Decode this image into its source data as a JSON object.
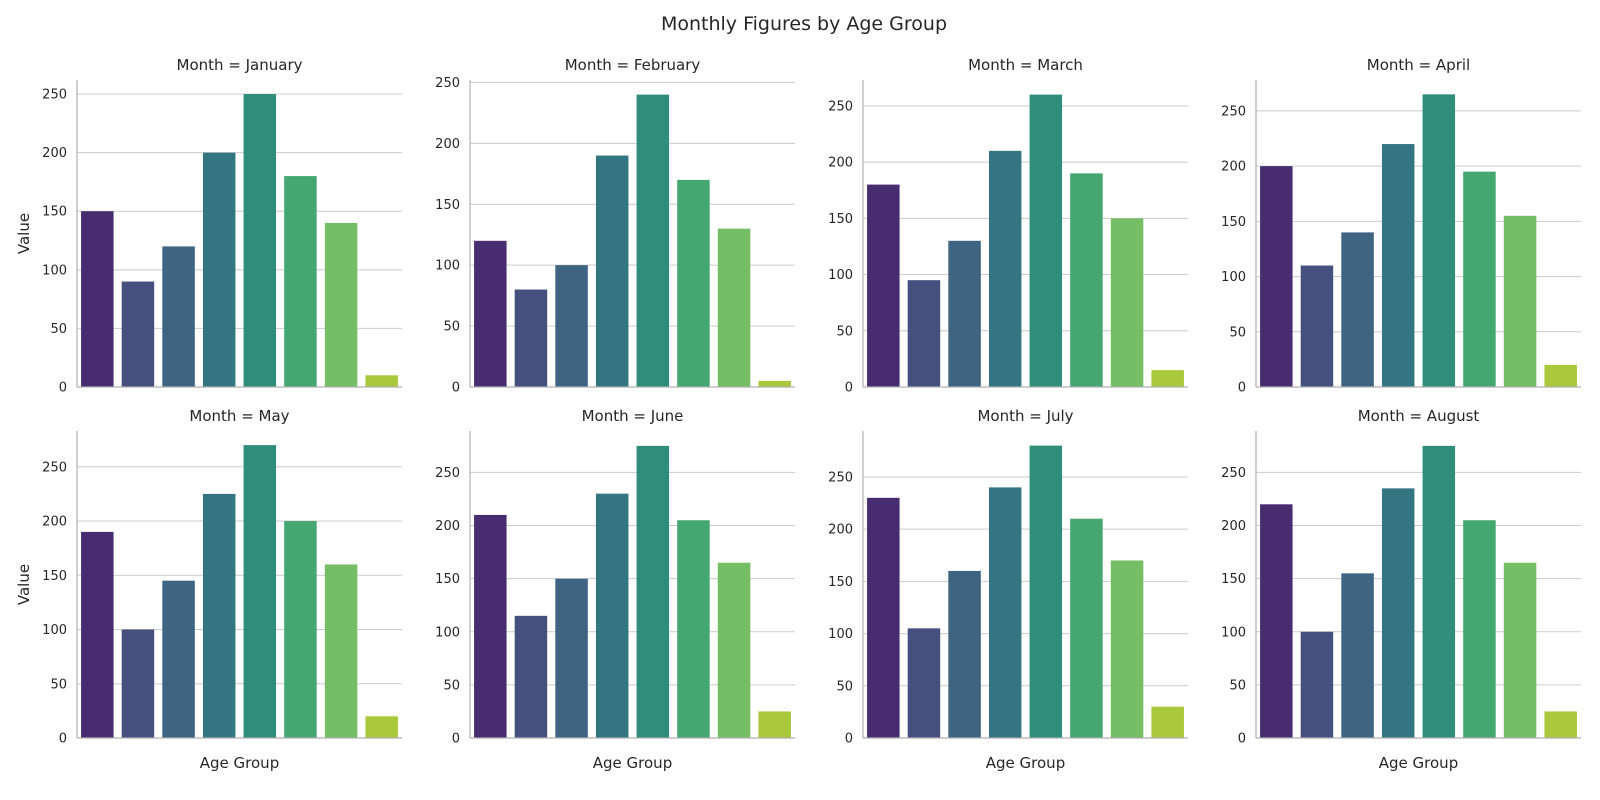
{
  "chart_data": {
    "type": "bar",
    "title": "Monthly Figures by Age Group",
    "xlabel": "Age Group",
    "ylabel": "Value",
    "grid": true,
    "legend": "none",
    "palette": [
      "#472d6f",
      "#46507e",
      "#3e6482",
      "#337682",
      "#2e8e7b",
      "#44a772",
      "#76be66",
      "#aac83c"
    ],
    "panels": [
      {
        "title": "Month = January",
        "ylim": [
          0,
          262
        ],
        "yticks": [
          0,
          50,
          100,
          150,
          200,
          250
        ],
        "values": [
          150,
          90,
          120,
          200,
          250,
          180,
          140,
          10
        ]
      },
      {
        "title": "Month = February",
        "ylim": [
          0,
          252
        ],
        "yticks": [
          0,
          50,
          100,
          150,
          200,
          250
        ],
        "values": [
          120,
          80,
          100,
          190,
          240,
          170,
          130,
          5
        ]
      },
      {
        "title": "Month = March",
        "ylim": [
          0,
          273
        ],
        "yticks": [
          0,
          50,
          100,
          150,
          200,
          250
        ],
        "values": [
          180,
          95,
          130,
          210,
          260,
          190,
          150,
          15
        ]
      },
      {
        "title": "Month = April",
        "ylim": [
          0,
          278
        ],
        "yticks": [
          0,
          50,
          100,
          150,
          200,
          250
        ],
        "values": [
          200,
          110,
          140,
          220,
          265,
          195,
          155,
          20
        ]
      },
      {
        "title": "Month = May",
        "ylim": [
          0,
          283
        ],
        "yticks": [
          0,
          50,
          100,
          150,
          200,
          250
        ],
        "values": [
          190,
          100,
          145,
          225,
          270,
          200,
          160,
          20
        ]
      },
      {
        "title": "Month = June",
        "ylim": [
          0,
          289
        ],
        "yticks": [
          0,
          50,
          100,
          150,
          200,
          250
        ],
        "values": [
          210,
          115,
          150,
          230,
          275,
          205,
          165,
          25
        ]
      },
      {
        "title": "Month = July",
        "ylim": [
          0,
          294
        ],
        "yticks": [
          0,
          50,
          100,
          150,
          200,
          250
        ],
        "values": [
          230,
          105,
          160,
          240,
          280,
          210,
          170,
          30
        ]
      },
      {
        "title": "Month = August",
        "ylim": [
          0,
          289
        ],
        "yticks": [
          0,
          50,
          100,
          150,
          200,
          250
        ],
        "values": [
          220,
          100,
          155,
          235,
          275,
          205,
          165,
          25
        ]
      }
    ]
  }
}
